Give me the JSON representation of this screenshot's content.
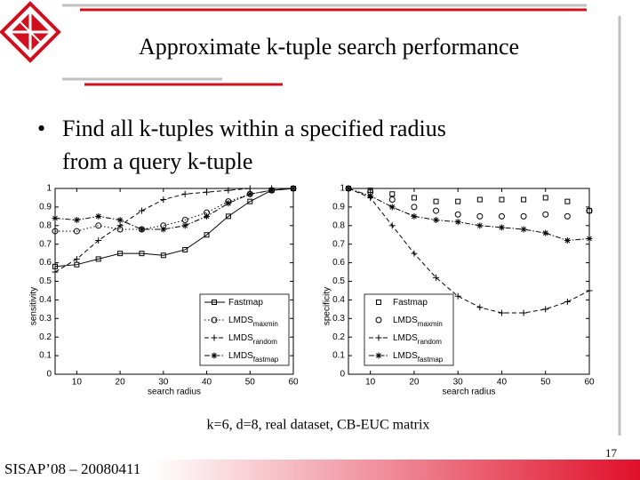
{
  "title": "Approximate k-tuple search performance",
  "bullet": [
    "Find all k-tuples within a specified radius",
    "from a query k-tuple"
  ],
  "caption": "k=6, d=8, real dataset, CB-EUC matrix",
  "page_number": "17",
  "footer": "SISAP’08 – 20080411",
  "chart_data": [
    {
      "type": "line",
      "xlabel": "search radius",
      "ylabel": "sensitivity",
      "x": [
        5,
        10,
        15,
        20,
        25,
        30,
        35,
        40,
        45,
        50,
        55,
        60
      ],
      "xlim": [
        5,
        60
      ],
      "ylim": [
        0,
        1
      ],
      "xticks": [
        10,
        20,
        30,
        40,
        50,
        60
      ],
      "yticks": [
        0,
        0.1,
        0.2,
        0.3,
        0.4,
        0.5,
        0.6,
        0.7,
        0.8,
        0.9,
        1
      ],
      "legend": "lower right",
      "series": [
        {
          "name": "Fastmap",
          "color": "#000000",
          "linestyle": "solid",
          "marker": "square",
          "values": [
            0.58,
            0.59,
            0.62,
            0.65,
            0.65,
            0.64,
            0.67,
            0.75,
            0.85,
            0.93,
            0.99,
            1.0
          ]
        },
        {
          "name": "LMDS",
          "subscript": "maxmin",
          "color": "#000000",
          "linestyle": "dotted",
          "marker": "circle",
          "values": [
            0.77,
            0.77,
            0.8,
            0.78,
            0.78,
            0.8,
            0.83,
            0.87,
            0.93,
            0.97,
            0.99,
            1.0
          ]
        },
        {
          "name": "LMDS",
          "subscript": "random",
          "color": "#000000",
          "linestyle": "dashed",
          "marker": "plus",
          "values": [
            0.55,
            0.62,
            0.72,
            0.8,
            0.88,
            0.94,
            0.97,
            0.98,
            0.99,
            1.0,
            1.0,
            1.0
          ]
        },
        {
          "name": "LMDS",
          "subscript": "fastmap",
          "color": "#000000",
          "linestyle": "dashdot",
          "marker": "star",
          "values": [
            0.84,
            0.83,
            0.85,
            0.83,
            0.78,
            0.78,
            0.8,
            0.85,
            0.92,
            0.97,
            0.99,
            1.0
          ]
        }
      ]
    },
    {
      "type": "line",
      "xlabel": "search radius",
      "ylabel": "specificity",
      "x": [
        5,
        10,
        15,
        20,
        25,
        30,
        35,
        40,
        45,
        50,
        55,
        60
      ],
      "xlim": [
        5,
        60
      ],
      "ylim": [
        0,
        1
      ],
      "xticks": [
        10,
        20,
        30,
        40,
        50,
        60
      ],
      "yticks": [
        0,
        0.1,
        0.2,
        0.3,
        0.4,
        0.5,
        0.6,
        0.7,
        0.8,
        0.9,
        1
      ],
      "legend": "lower left",
      "series": [
        {
          "name": "Fastmap",
          "color": "#000000",
          "linestyle": "none",
          "marker": "square",
          "values": [
            1.0,
            0.99,
            0.97,
            0.95,
            0.93,
            0.93,
            0.94,
            0.94,
            0.94,
            0.95,
            0.93,
            0.88
          ]
        },
        {
          "name": "LMDS",
          "subscript": "maxmin",
          "color": "#000000",
          "linestyle": "none",
          "marker": "circle",
          "values": [
            1.0,
            0.98,
            0.94,
            0.9,
            0.88,
            0.86,
            0.85,
            0.85,
            0.85,
            0.86,
            0.85,
            0.88
          ]
        },
        {
          "name": "LMDS",
          "subscript": "random",
          "color": "#000000",
          "linestyle": "dashed",
          "marker": "plus",
          "values": [
            1.0,
            0.95,
            0.8,
            0.65,
            0.52,
            0.42,
            0.36,
            0.33,
            0.33,
            0.35,
            0.39,
            0.45
          ]
        },
        {
          "name": "LMDS",
          "subscript": "fastmap",
          "color": "#000000",
          "linestyle": "dashdot",
          "marker": "star",
          "values": [
            1.0,
            0.96,
            0.9,
            0.85,
            0.83,
            0.82,
            0.8,
            0.79,
            0.78,
            0.76,
            0.72,
            0.73
          ]
        }
      ]
    }
  ]
}
